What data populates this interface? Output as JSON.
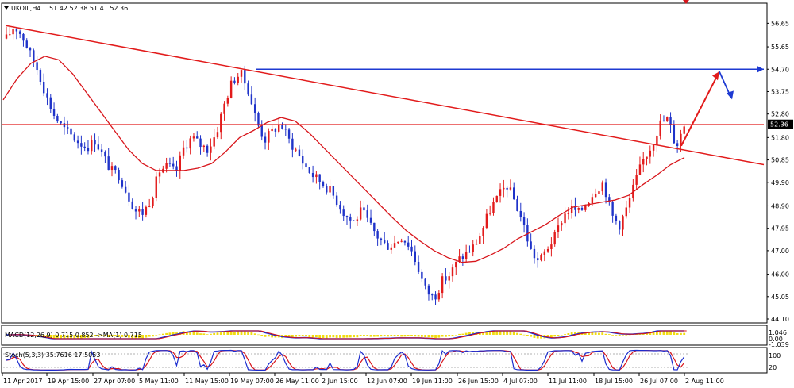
{
  "header": {
    "symbol": "UKOIL,H4",
    "ohlc": "51.42 52.38 51.41 52.36"
  },
  "indicators": {
    "macd_label": "MACD(12,26,9) 0.715 0.852 ->MA(1) 0.715",
    "macd_axis": [
      "1.046",
      "0.00",
      "-1.039"
    ],
    "stoch_label": "Stoch(5,3,3) 35.7616 17.5053",
    "stoch_axis": [
      "100",
      "20"
    ]
  },
  "current_price_label": "52.36",
  "colors": {
    "bull": "#e21b1b",
    "bear": "#1f33c9",
    "ma": "#d8151b",
    "trendline": "#e21b1b",
    "resistance": "#1e3ad2",
    "macd_hist": "#f2dc0f",
    "stoch_main": "#1b2ccf",
    "stoch_signal": "#d8151b",
    "price_tag": "#000000"
  },
  "chart_data": {
    "type": "candlestick",
    "instrument": "UKOIL",
    "timeframe": "H4",
    "ylim": [
      44.1,
      57.1
    ],
    "y_ticks": [
      "56.65",
      "55.65",
      "54.70",
      "53.75",
      "52.80",
      "51.80",
      "50.85",
      "49.90",
      "48.90",
      "47.95",
      "47.00",
      "46.00",
      "45.05",
      "44.10"
    ],
    "x_ticks": [
      "11 Apr 2017",
      "19 Apr 15:00",
      "27 Apr 07:00",
      "5 May 11:00",
      "11 May 15:00",
      "19 May 07:00",
      "26 May 11:00",
      "2 Jun 15:00",
      "12 Jun 07:00",
      "19 Jun 11:00",
      "26 Jun 15:00",
      "4 Jul 07:00",
      "11 Jul 11:00",
      "18 Jul 15:00",
      "26 Jul 07:00",
      "2 Aug 11:00"
    ],
    "price_path": [
      56.0,
      56.55,
      56.1,
      55.3,
      54.6,
      53.5,
      52.7,
      52.2,
      51.9,
      51.6,
      51.4,
      51.7,
      51.0,
      50.4,
      50.2,
      49.4,
      48.7,
      48.6,
      49.3,
      50.4,
      50.6,
      50.3,
      51.4,
      51.8,
      51.5,
      51.3,
      52.0,
      53.2,
      54.2,
      54.55,
      53.8,
      52.5,
      51.7,
      52.1,
      52.4,
      51.7,
      51.2,
      50.6,
      50.2,
      49.9,
      49.6,
      49.1,
      48.5,
      48.2,
      48.7,
      48.1,
      47.6,
      47.2,
      47.3,
      47.6,
      47.2,
      46.3,
      45.3,
      45.0,
      45.7,
      46.0,
      46.6,
      46.9,
      47.2,
      47.9,
      48.8,
      49.3,
      49.8,
      49.1,
      48.2,
      47.0,
      46.5,
      47.1,
      47.6,
      48.5,
      48.8,
      48.6,
      49.1,
      49.6,
      49.9,
      48.5,
      48.1,
      48.9,
      50.0,
      50.9,
      51.5,
      52.4,
      52.6,
      51.4,
      52.36
    ],
    "moving_average": [
      53.4,
      54.3,
      54.95,
      55.25,
      55.1,
      54.5,
      53.7,
      52.9,
      52.1,
      51.3,
      50.7,
      50.4,
      50.4,
      50.4,
      50.5,
      50.7,
      51.2,
      51.8,
      52.1,
      52.45,
      52.65,
      52.5,
      52.0,
      51.4,
      50.8,
      50.2,
      49.6,
      49.0,
      48.4,
      47.85,
      47.4,
      47.0,
      46.7,
      46.5,
      46.55,
      46.8,
      47.1,
      47.5,
      47.8,
      48.1,
      48.5,
      48.85,
      48.95,
      49.05,
      49.15,
      49.35,
      49.8,
      50.2,
      50.65,
      50.95
    ],
    "trendline": {
      "start": 56.55,
      "end": 50.65
    },
    "resistance_level": 54.7,
    "current_price": 52.36,
    "projection": {
      "from": 51.45,
      "to": 54.6,
      "then": 53.55
    }
  }
}
